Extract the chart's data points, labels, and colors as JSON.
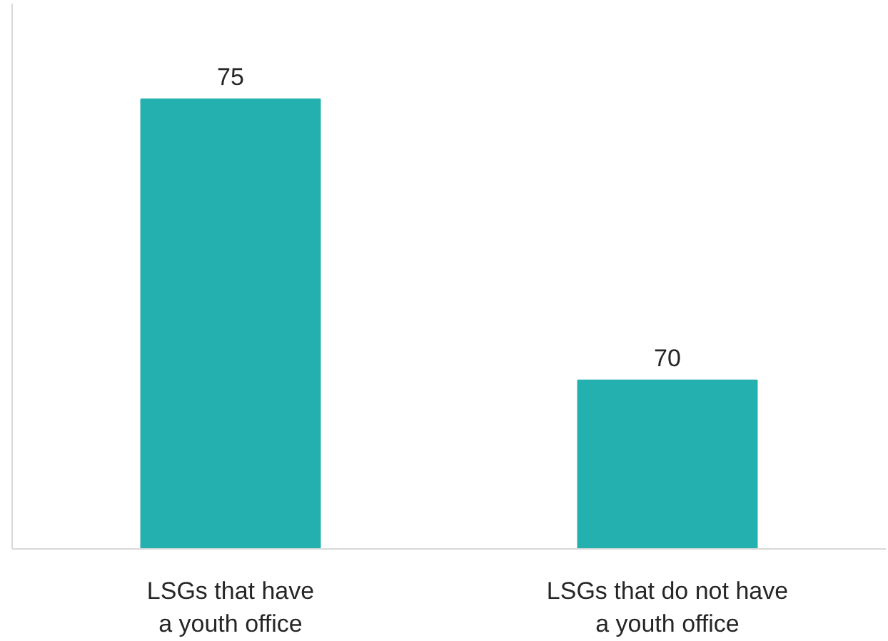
{
  "chart_data": {
    "type": "bar",
    "categories": [
      "LSGs that have\na youth office",
      "LSGs that do not have\na youth office"
    ],
    "values": [
      75,
      70
    ],
    "color": "#25b0b0",
    "data_labels": true,
    "ylim": [
      67,
      76.7
    ],
    "tick_labels": "x"
  }
}
